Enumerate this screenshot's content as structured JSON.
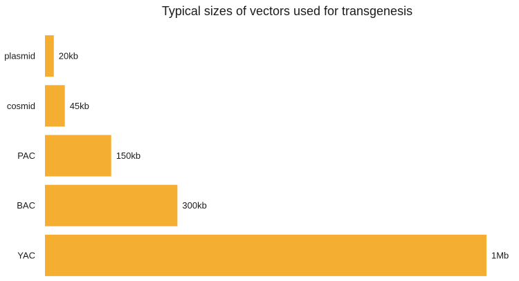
{
  "chart_data": {
    "type": "bar",
    "orientation": "horizontal",
    "title": "Typical sizes of vectors used for transgenesis",
    "xlabel": "",
    "ylabel": "",
    "unit": "kb",
    "categories": [
      "plasmid",
      "cosmid",
      "PAC",
      "BAC",
      "YAC"
    ],
    "values": [
      20,
      45,
      150,
      300,
      1000
    ],
    "data_labels": [
      "20kb",
      "45kb",
      "150kb",
      "300kb",
      "1Mb"
    ],
    "xlim": [
      0,
      1000
    ],
    "grid": false,
    "legend": "none",
    "bar_color": "#F4AF33"
  }
}
